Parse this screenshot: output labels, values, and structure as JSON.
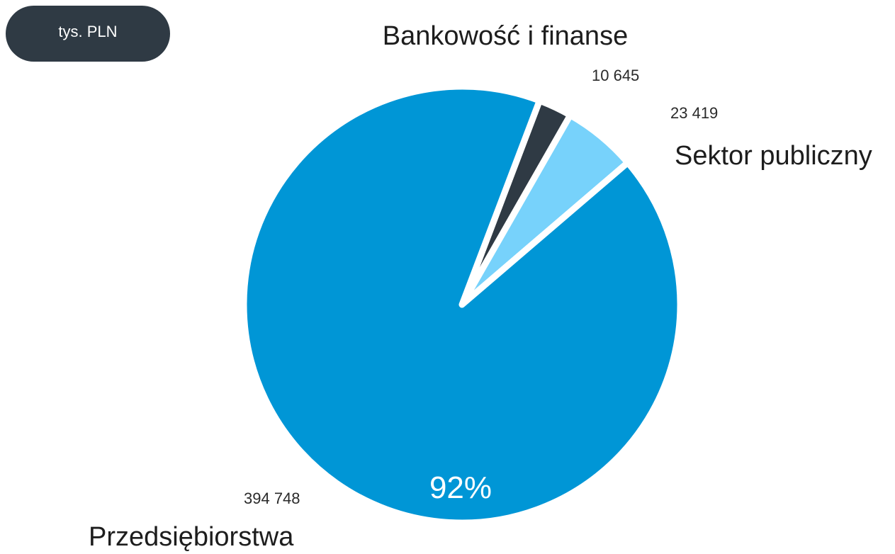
{
  "unit_label": "tys. PLN",
  "colors": {
    "badge": "#2f3a44",
    "gap": "#ffffff"
  },
  "chart_data": {
    "type": "pie",
    "title": "",
    "slices": [
      {
        "name": "Przedsiębiorstwa",
        "value": 394748,
        "value_label": "394 748",
        "percent_label": "92%",
        "color": "#0096d6"
      },
      {
        "name": "Bankowość i finanse",
        "value": 10645,
        "value_label": "10 645",
        "percent_label": "",
        "color": "#2f3a44"
      },
      {
        "name": "Sektor publiczny",
        "value": 23419,
        "value_label": "23 419",
        "percent_label": "",
        "color": "#77d2fb"
      }
    ]
  }
}
